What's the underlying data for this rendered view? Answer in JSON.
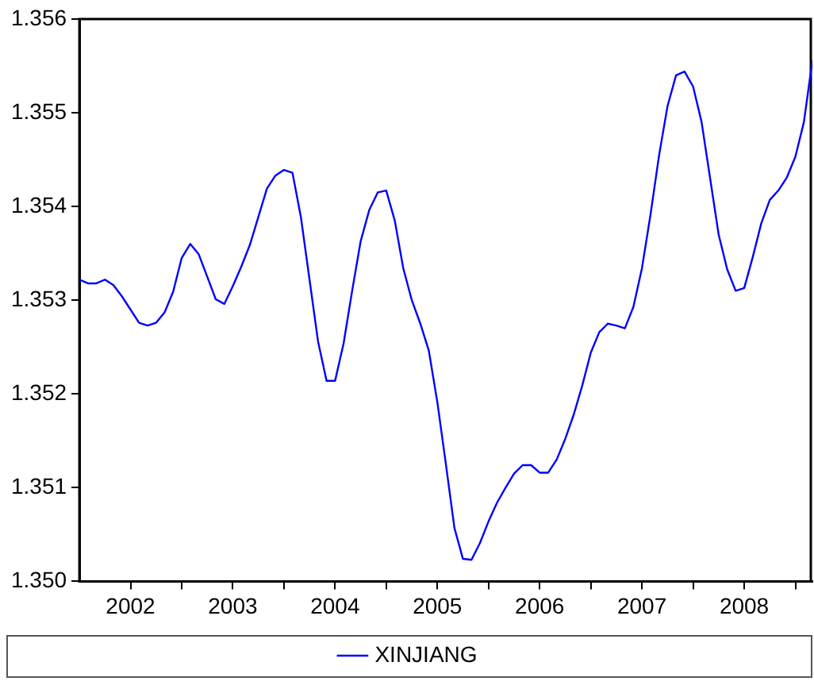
{
  "chart_data": {
    "type": "line",
    "xlim": [
      "2002-01",
      "2009-03"
    ],
    "xticks": [
      {
        "value": "2002-07",
        "label": "2002"
      },
      {
        "value": "2003-01",
        "label": null
      },
      {
        "value": "2003-07",
        "label": "2003"
      },
      {
        "value": "2004-01",
        "label": null
      },
      {
        "value": "2004-07",
        "label": "2004"
      },
      {
        "value": "2005-01",
        "label": null
      },
      {
        "value": "2005-07",
        "label": "2005"
      },
      {
        "value": "2006-01",
        "label": null
      },
      {
        "value": "2006-07",
        "label": "2006"
      },
      {
        "value": "2007-01",
        "label": null
      },
      {
        "value": "2007-07",
        "label": "2007"
      },
      {
        "value": "2008-01",
        "label": null
      },
      {
        "value": "2008-07",
        "label": "2008"
      },
      {
        "value": "2009-01",
        "label": null
      }
    ],
    "ylim": [
      1.35,
      1.356
    ],
    "yticks": [
      {
        "value": 1.35,
        "label": "1.350"
      },
      {
        "value": 1.351,
        "label": "1.351"
      },
      {
        "value": 1.352,
        "label": "1.352"
      },
      {
        "value": 1.353,
        "label": "1.353"
      },
      {
        "value": 1.354,
        "label": "1.354"
      },
      {
        "value": 1.355,
        "label": "1.355"
      },
      {
        "value": 1.356,
        "label": "1.356"
      }
    ],
    "grid": false,
    "legend": "bottom",
    "marker": "none",
    "line_style": "solid",
    "x": [
      "2002-01",
      "2002-02",
      "2002-03",
      "2002-04",
      "2002-05",
      "2002-06",
      "2002-07",
      "2002-08",
      "2002-09",
      "2002-10",
      "2002-11",
      "2002-12",
      "2003-01",
      "2003-02",
      "2003-03",
      "2003-04",
      "2003-05",
      "2003-06",
      "2003-07",
      "2003-08",
      "2003-09",
      "2003-10",
      "2003-11",
      "2003-12",
      "2004-01",
      "2004-02",
      "2004-03",
      "2004-04",
      "2004-05",
      "2004-06",
      "2004-07",
      "2004-08",
      "2004-09",
      "2004-10",
      "2004-11",
      "2004-12",
      "2005-01",
      "2005-02",
      "2005-03",
      "2005-04",
      "2005-05",
      "2005-06",
      "2005-07",
      "2005-08",
      "2005-09",
      "2005-10",
      "2005-11",
      "2005-12",
      "2006-01",
      "2006-02",
      "2006-03",
      "2006-04",
      "2006-05",
      "2006-06",
      "2006-07",
      "2006-08",
      "2006-09",
      "2006-10",
      "2006-11",
      "2006-12",
      "2007-01",
      "2007-02",
      "2007-03",
      "2007-04",
      "2007-05",
      "2007-06",
      "2007-07",
      "2007-08",
      "2007-09",
      "2007-10",
      "2007-11",
      "2007-12",
      "2008-01",
      "2008-02",
      "2008-03",
      "2008-04",
      "2008-05",
      "2008-06",
      "2008-07",
      "2008-08",
      "2008-09",
      "2008-10",
      "2008-11",
      "2008-12",
      "2009-01",
      "2009-02",
      "2009-03"
    ],
    "series": [
      {
        "name": "XINJIANG",
        "color": "#0000ff",
        "values": [
          1.35322,
          1.35318,
          1.35318,
          1.35322,
          1.35316,
          1.35304,
          1.3529,
          1.35276,
          1.35273,
          1.35276,
          1.35287,
          1.35309,
          1.35345,
          1.3536,
          1.35349,
          1.35325,
          1.35301,
          1.35296,
          1.35315,
          1.35336,
          1.35359,
          1.35389,
          1.35419,
          1.35433,
          1.35439,
          1.35436,
          1.35388,
          1.35322,
          1.35256,
          1.35214,
          1.35214,
          1.35254,
          1.3531,
          1.35363,
          1.35396,
          1.35415,
          1.35417,
          1.35385,
          1.35334,
          1.353,
          1.35275,
          1.35246,
          1.35191,
          1.35125,
          1.35057,
          1.35024,
          1.35023,
          1.35041,
          1.35064,
          1.35084,
          1.351,
          1.35115,
          1.35124,
          1.35124,
          1.35116,
          1.35116,
          1.3513,
          1.35152,
          1.35178,
          1.35209,
          1.35244,
          1.35266,
          1.35275,
          1.35273,
          1.3527,
          1.35293,
          1.35334,
          1.35391,
          1.35454,
          1.35507,
          1.3554,
          1.35544,
          1.35528,
          1.3549,
          1.3543,
          1.3537,
          1.35333,
          1.3531,
          1.35313,
          1.35346,
          1.35382,
          1.35407,
          1.35417,
          1.35431,
          1.35453,
          1.3549,
          1.35556
        ]
      }
    ]
  }
}
